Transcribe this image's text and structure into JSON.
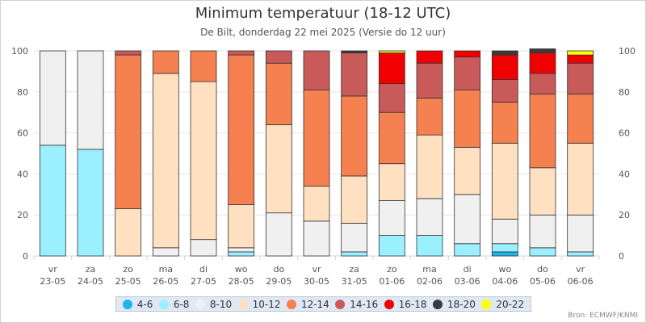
{
  "title": "Minimum temperatuur (18-12 UTC)",
  "subtitle": "De Bilt, donderdag 22 mei 2025 (Versie do 12 uur)",
  "credit": "Bron: ECMWF/KNMI",
  "chart_data": {
    "type": "bar",
    "stacked": true,
    "ylim": [
      0,
      100
    ],
    "yticks": [
      0,
      20,
      40,
      60,
      80,
      100
    ],
    "grid": true,
    "legend_position": "bottom",
    "categories": [
      [
        "vr",
        "23-05"
      ],
      [
        "za",
        "24-05"
      ],
      [
        "zo",
        "25-05"
      ],
      [
        "ma",
        "26-05"
      ],
      [
        "di",
        "27-05"
      ],
      [
        "wo",
        "28-05"
      ],
      [
        "do",
        "29-05"
      ],
      [
        "vr",
        "30-05"
      ],
      [
        "za",
        "31-05"
      ],
      [
        "zo",
        "01-06"
      ],
      [
        "ma",
        "02-06"
      ],
      [
        "di",
        "03-06"
      ],
      [
        "wo",
        "04-06"
      ],
      [
        "do",
        "05-06"
      ],
      [
        "vr",
        "06-06"
      ]
    ],
    "series": [
      {
        "name": "4-6",
        "color": "#1eb4f0",
        "values": [
          0,
          0,
          0,
          0,
          0,
          0,
          0,
          0,
          0,
          0,
          0,
          0,
          2,
          0,
          0
        ]
      },
      {
        "name": "6-8",
        "color": "#9af0ff",
        "values": [
          54,
          52,
          0,
          0,
          0,
          2,
          0,
          0,
          2,
          10,
          10,
          6,
          4,
          4,
          2
        ]
      },
      {
        "name": "8-10",
        "color": "#f0f0f0",
        "values": [
          46,
          48,
          0,
          4,
          8,
          2,
          21,
          17,
          14,
          17,
          18,
          24,
          12,
          16,
          18
        ]
      },
      {
        "name": "10-12",
        "color": "#ffe0c0",
        "values": [
          0,
          0,
          23,
          85,
          77,
          21,
          43,
          17,
          23,
          18,
          31,
          23,
          37,
          23,
          35
        ]
      },
      {
        "name": "12-14",
        "color": "#f58050",
        "values": [
          0,
          0,
          75,
          11,
          15,
          73,
          30,
          47,
          39,
          25,
          18,
          28,
          20,
          36,
          24
        ]
      },
      {
        "name": "14-16",
        "color": "#c85a5a",
        "values": [
          0,
          0,
          2,
          0,
          0,
          2,
          6,
          19,
          21,
          14,
          17,
          16,
          11,
          10,
          15
        ]
      },
      {
        "name": "16-18",
        "color": "#f00000",
        "values": [
          0,
          0,
          0,
          0,
          0,
          0,
          0,
          0,
          0,
          15,
          6,
          3,
          12,
          10,
          4
        ]
      },
      {
        "name": "18-20",
        "color": "#3a3a3a",
        "values": [
          0,
          0,
          0,
          0,
          0,
          0,
          0,
          0,
          1,
          0,
          0,
          0,
          2,
          2,
          0
        ]
      },
      {
        "name": "20-22",
        "color": "#ffff00",
        "values": [
          0,
          0,
          0,
          0,
          0,
          0,
          0,
          0,
          0,
          1,
          0,
          0,
          0,
          0,
          2
        ]
      }
    ]
  }
}
